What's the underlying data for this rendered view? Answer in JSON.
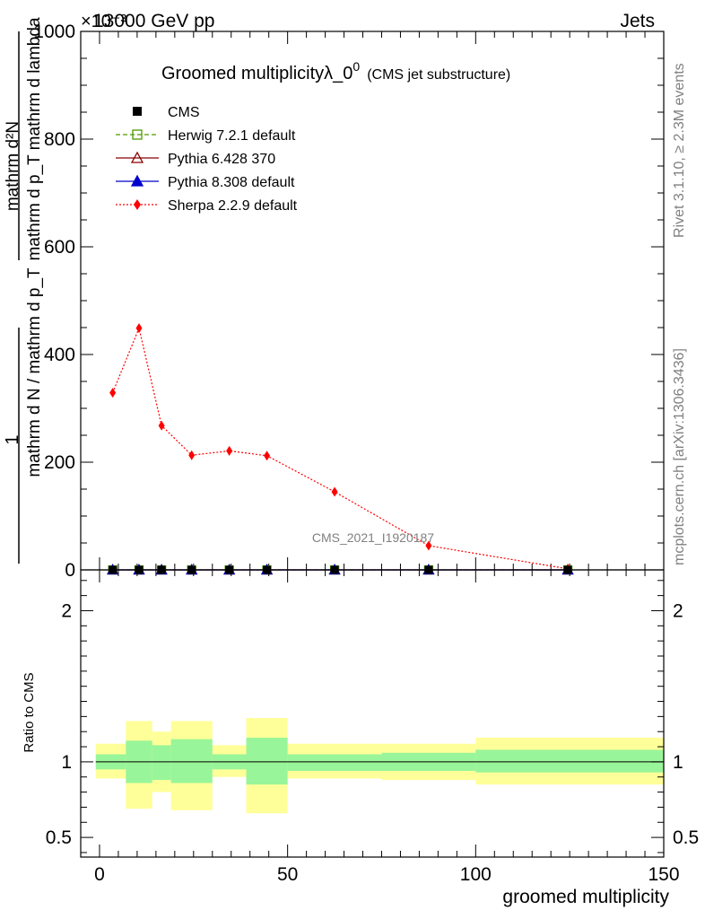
{
  "header": {
    "left": "13000 GeV pp",
    "right": "Jets",
    "exponent": "×10⁻³"
  },
  "side_labels": {
    "rivet": "Rivet 3.1.10, ≥ 2.3M events",
    "mcplots": "mcplots.cern.ch [arXiv:1306.3436]"
  },
  "watermark": "CMS_2021_I1920187",
  "chart_data": [
    {
      "type": "line",
      "title": "Groomed multiplicityλ_0",
      "title_superscript": "0",
      "subtitle": "(CMS jet substructure)",
      "xlabel": "groomed multiplicity",
      "ylabel_numerator": "mathrm d²N",
      "ylabel_numerator_sup": "2",
      "ylabel_denominator": "mathrm d p_T mathrm d lambda",
      "ylabel_prefactor_num": "1",
      "ylabel_prefactor_den": "mathrm d N / mathrm d p_T",
      "xlim": [
        -5,
        150
      ],
      "ylim": [
        0,
        1000
      ],
      "y_scale_factor": "1e-3",
      "x_ticks": [
        0,
        50,
        100,
        150
      ],
      "y_ticks": [
        0,
        200,
        400,
        600,
        800,
        1000
      ],
      "x": [
        3.5,
        10.5,
        16.5,
        24.5,
        34.5,
        44.5,
        62.5,
        87.5,
        124.5
      ],
      "series": [
        {
          "name": "CMS",
          "color": "#000000",
          "marker": "square",
          "values": [
            0,
            0,
            0,
            0,
            0,
            0,
            0,
            0,
            0
          ]
        },
        {
          "name": "Herwig 7.2.1 default",
          "color": "#4d9a00",
          "marker": "open-square",
          "line": "dashed",
          "values": [
            0,
            0,
            0,
            0,
            0,
            0,
            0,
            0,
            0
          ]
        },
        {
          "name": "Pythia 6.428 370",
          "color": "#8b0000",
          "marker": "open-triangle",
          "line": "solid",
          "values": [
            0,
            0,
            0,
            0,
            0,
            0,
            0,
            0,
            0
          ]
        },
        {
          "name": "Pythia 8.308 default",
          "color": "#0000cc",
          "marker": "triangle",
          "line": "solid",
          "values": [
            0,
            0,
            0,
            0,
            0,
            0,
            0,
            0,
            0
          ]
        },
        {
          "name": "Sherpa 2.2.9 default",
          "color": "#ff0000",
          "marker": "diamond",
          "line": "dotted",
          "values": [
            329,
            449,
            268,
            213,
            221,
            212,
            145,
            45,
            2
          ]
        }
      ]
    },
    {
      "type": "area",
      "ylabel": "Ratio to CMS",
      "xlim": [
        -5,
        150
      ],
      "ylim": [
        0.37,
        2.27
      ],
      "x_ticks": [
        0,
        50,
        100,
        150
      ],
      "y_ticks_labeled": [
        0.5,
        1,
        2
      ],
      "reference_line": 1,
      "bins": [
        {
          "x0": -1,
          "x1": 7,
          "inner": [
            0.95,
            1.05
          ],
          "outer": [
            0.89,
            1.12
          ]
        },
        {
          "x0": 7,
          "x1": 14,
          "inner": [
            0.86,
            1.14
          ],
          "outer": [
            0.69,
            1.27
          ]
        },
        {
          "x0": 14,
          "x1": 19,
          "inner": [
            0.88,
            1.11
          ],
          "outer": [
            0.8,
            1.2
          ]
        },
        {
          "x0": 19,
          "x1": 30,
          "inner": [
            0.86,
            1.15
          ],
          "outer": [
            0.68,
            1.27
          ]
        },
        {
          "x0": 30,
          "x1": 39,
          "inner": [
            0.95,
            1.05
          ],
          "outer": [
            0.9,
            1.11
          ]
        },
        {
          "x0": 39,
          "x1": 50,
          "inner": [
            0.85,
            1.16
          ],
          "outer": [
            0.66,
            1.29
          ]
        },
        {
          "x0": 50,
          "x1": 75,
          "inner": [
            0.94,
            1.05
          ],
          "outer": [
            0.89,
            1.12
          ]
        },
        {
          "x0": 75,
          "x1": 100,
          "inner": [
            0.94,
            1.06
          ],
          "outer": [
            0.88,
            1.12
          ]
        },
        {
          "x0": 100,
          "x1": 150,
          "inner": [
            0.93,
            1.08
          ],
          "outer": [
            0.85,
            1.16
          ]
        }
      ],
      "colors": {
        "inner": "#99f599",
        "outer": "#ffff99"
      }
    }
  ]
}
